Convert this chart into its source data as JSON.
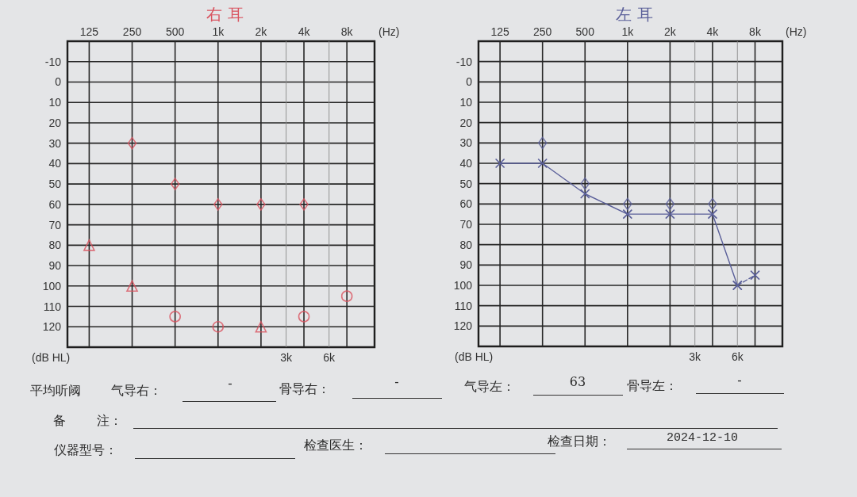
{
  "chart_data": [
    {
      "type": "scatter",
      "title": "右 耳",
      "xlabel": "(Hz)",
      "ylabel": "(dB HL)",
      "log": "x",
      "xlim": [
        88,
        12500
      ],
      "xticks": [
        125,
        250,
        500,
        {
          "value": 1000,
          "label": "1k"
        },
        {
          "value": 2000,
          "label": "2k"
        },
        {
          "value": 4000,
          "label": "4k"
        },
        {
          "value": 8000,
          "label": "8k"
        }
      ],
      "ylim": [
        130,
        -20
      ],
      "yticks": [
        -10,
        0,
        10,
        20,
        30,
        40,
        50,
        60,
        70,
        80,
        90,
        100,
        110,
        120
      ],
      "grid": true,
      "ref_lines": [
        {
          "axis": "x",
          "value": 3000,
          "label": "3k",
          "color": "#8a8a8a"
        },
        {
          "axis": "x",
          "value": 6000,
          "label": "6k",
          "color": "#8a8a8a"
        }
      ],
      "series": [
        {
          "type": "scatter",
          "marker": "diamond",
          "color": "#d9535f",
          "x": [
            250,
            500,
            1000,
            2000,
            4000
          ],
          "values": [
            30,
            50,
            60,
            60,
            60
          ]
        },
        {
          "type": "scatter",
          "marker": "triangle",
          "color": "#d9535f",
          "x": [
            125,
            250,
            2000
          ],
          "values": [
            80,
            100,
            120
          ]
        },
        {
          "type": "scatter",
          "marker": "circle",
          "color": "#d9535f",
          "x": [
            500,
            1000,
            4000,
            8000
          ],
          "values": [
            115,
            120,
            115,
            105
          ]
        }
      ]
    },
    {
      "type": "line",
      "title": "左 耳",
      "xlabel": "(Hz)",
      "ylabel": "(dB HL)",
      "log": "x",
      "xlim": [
        88,
        12500
      ],
      "xticks": [
        125,
        250,
        500,
        {
          "value": 1000,
          "label": "1k"
        },
        {
          "value": 2000,
          "label": "2k"
        },
        {
          "value": 4000,
          "label": "4k"
        },
        {
          "value": 8000,
          "label": "8k"
        }
      ],
      "ylim": [
        130,
        -20
      ],
      "yticks": [
        -10,
        0,
        10,
        20,
        30,
        40,
        50,
        60,
        70,
        80,
        90,
        100,
        110,
        120
      ],
      "grid": true,
      "ref_lines": [
        {
          "axis": "x",
          "value": 3000,
          "label": "3k",
          "color": "#8a8a8a"
        },
        {
          "axis": "x",
          "value": 6000,
          "label": "6k",
          "color": "#8a8a8a"
        }
      ],
      "series": [
        {
          "type": "line",
          "marker": "cross",
          "line_style": "solid",
          "color": "#5a5f99",
          "x": [
            125,
            250,
            500,
            1000,
            2000,
            4000,
            6000
          ],
          "values": [
            40,
            40,
            55,
            65,
            65,
            65,
            100
          ]
        },
        {
          "type": "line",
          "marker": "cross",
          "line_style": "dashed",
          "color": "#5a5f99",
          "x": [
            6000,
            8000
          ],
          "values": [
            100,
            95
          ]
        },
        {
          "type": "scatter",
          "marker": "diamond",
          "color": "#5a5f99",
          "x": [
            250,
            500,
            1000,
            2000,
            4000
          ],
          "values": [
            30,
            50,
            60,
            60,
            60
          ]
        }
      ]
    },
    {
      "type": "other",
      "annotations": [
        "平均听阈",
        "气导右：",
        "-",
        "骨导右：",
        "-",
        "气导左：",
        "63",
        "骨导左：",
        "-",
        "备 注：",
        "仪器型号：",
        "检查医生：",
        "检查日期：",
        "2024-12-10"
      ]
    }
  ]
}
